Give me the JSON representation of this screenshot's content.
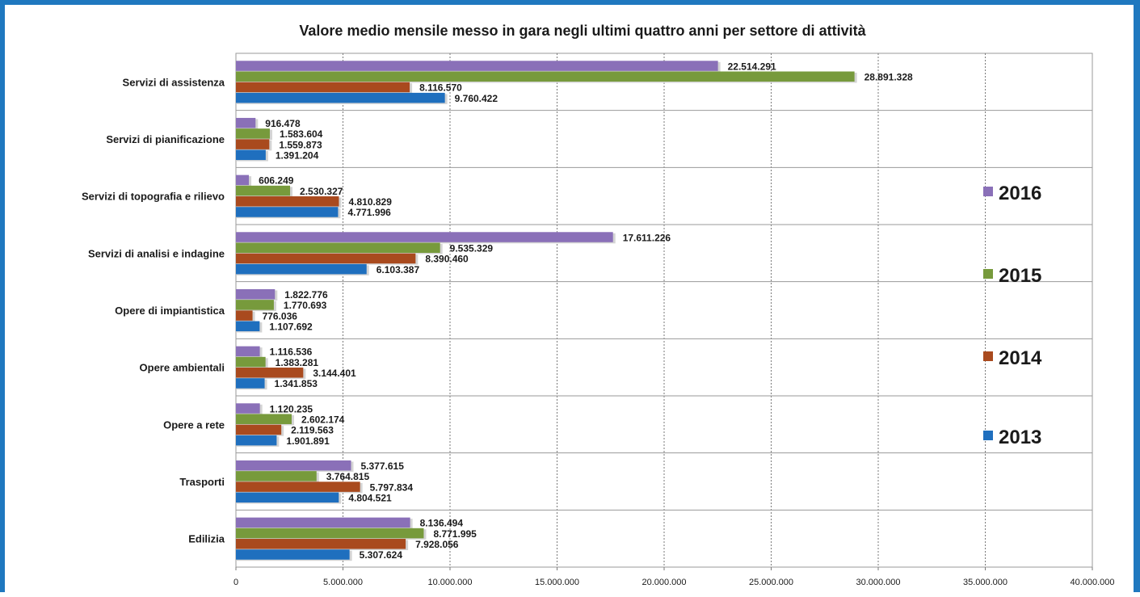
{
  "chart_data": {
    "type": "bar",
    "orientation": "horizontal",
    "title": "Valore medio mensile messo in gara negli ultimi quattro anni per settore di attività",
    "xlabel": "",
    "ylabel": "",
    "xlim": [
      0,
      40000000
    ],
    "ticks": [
      "0",
      "5.000.000",
      "10.000.000",
      "15.000.000",
      "20.000.000",
      "25.000.000",
      "30.000.000",
      "35.000.000",
      "40.000.000"
    ],
    "grid": true,
    "legend_position": "right",
    "categories": [
      "Servizi di assistenza",
      "Servizi di pianificazione",
      "Servizi di topografia e rilievo",
      "Servizi di analisi e indagine",
      "Opere di impiantistica",
      "Opere ambientali",
      "Opere a rete",
      "Trasporti",
      "Edilizia"
    ],
    "series": [
      {
        "name": "2016",
        "color": "#8a70b8",
        "values": [
          22514291,
          916478,
          606249,
          17611226,
          1822776,
          1116536,
          1120235,
          5377615,
          8136494
        ],
        "labels": [
          "22.514.291",
          "916.478",
          "606.249",
          "17.611.226",
          "1.822.776",
          "1.116.536",
          "1.120.235",
          "5.377.615",
          "8.136.494"
        ]
      },
      {
        "name": "2015",
        "color": "#779a3c",
        "values": [
          28891328,
          1583604,
          2530327,
          9535329,
          1770693,
          1383281,
          2602174,
          3764815,
          8771995
        ],
        "labels": [
          "28.891.328",
          "1.583.604",
          "2.530.327",
          "9.535.329",
          "1.770.693",
          "1.383.281",
          "2.602.174",
          "3.764.815",
          "8.771.995"
        ]
      },
      {
        "name": "2014",
        "color": "#a94a1e",
        "values": [
          8116570,
          1559873,
          4810829,
          8390460,
          776036,
          3144401,
          2119563,
          5797834,
          7928056
        ],
        "labels": [
          "8.116.570",
          "1.559.873",
          "4.810.829",
          "8.390.460",
          "776.036",
          "3.144.401",
          "2.119.563",
          "5.797.834",
          "7.928.056"
        ]
      },
      {
        "name": "2013",
        "color": "#1f6fbe",
        "values": [
          9760422,
          1391204,
          4771996,
          6103387,
          1107692,
          1341853,
          1901891,
          4804521,
          5307624
        ],
        "labels": [
          "9.760.422",
          "1.391.204",
          "4.771.996",
          "6.103.387",
          "1.107.692",
          "1.341.853",
          "1.901.891",
          "4.804.521",
          "5.307.624"
        ]
      }
    ]
  }
}
